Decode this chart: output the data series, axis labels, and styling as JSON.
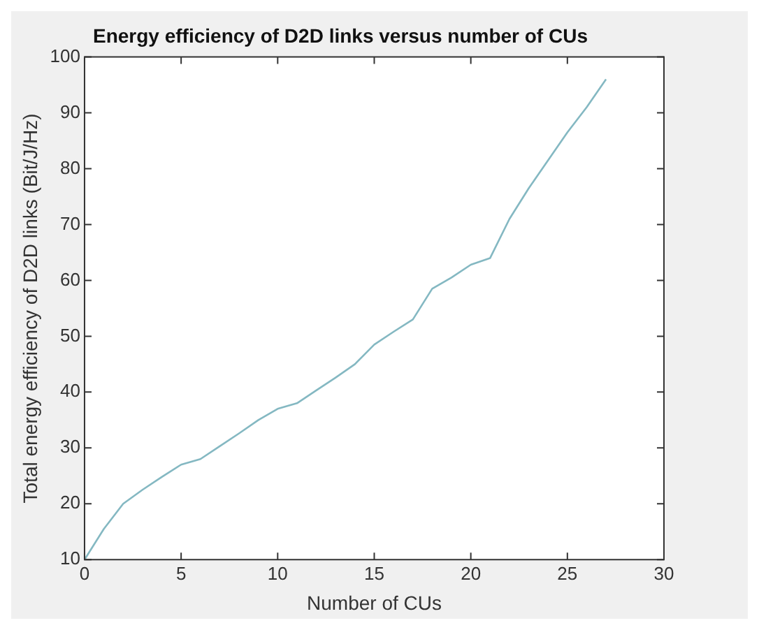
{
  "chart_data": {
    "type": "line",
    "title": "Energy efficiency of D2D links versus number of CUs",
    "xlabel": "Number of CUs",
    "ylabel": "Total energy efficiency of D2D links (Bit/J/Hz)",
    "x": [
      0,
      1,
      2,
      3,
      4,
      5,
      6,
      7,
      8,
      9,
      10,
      11,
      12,
      13,
      14,
      15,
      16,
      17,
      18,
      19,
      20,
      21,
      22,
      23,
      24,
      25,
      26,
      27
    ],
    "series": [
      {
        "color": "#84b8c2",
        "values": [
          10,
          15.5,
          20,
          22.5,
          24.8,
          27,
          28,
          30.3,
          32.6,
          35,
          37,
          38,
          40.3,
          42.6,
          45,
          48.5,
          50.8,
          53,
          58.5,
          60.5,
          62.8,
          64,
          71,
          76.5,
          81.5,
          86.5,
          91,
          96
        ]
      }
    ],
    "xlim": [
      0,
      30
    ],
    "xticks": [
      0,
      5,
      10,
      15,
      20,
      25,
      30
    ],
    "ylim": [
      10,
      100
    ],
    "yticks": [
      10,
      20,
      30,
      40,
      50,
      60,
      70,
      80,
      90,
      100
    ],
    "grid": false,
    "legend": false,
    "marker": "none",
    "line_style": "solid"
  }
}
